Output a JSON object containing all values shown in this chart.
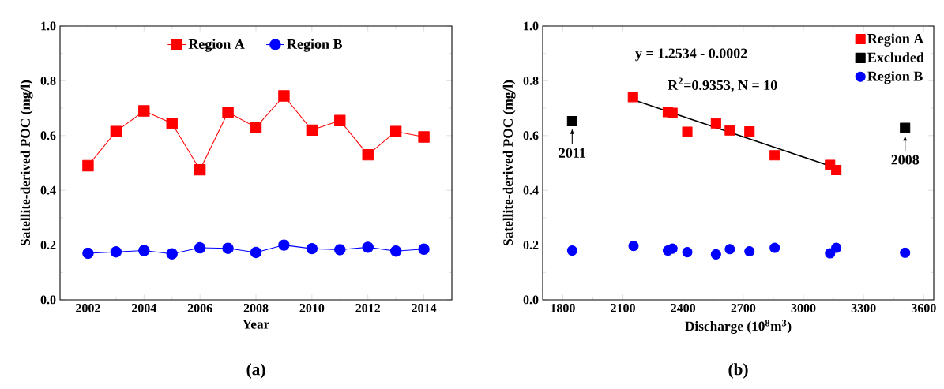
{
  "chart_data": [
    {
      "type": "line",
      "title": "(**a**)",
      "xlabel": "Year",
      "ylabel": "Satellite-derived POC (mg/l)",
      "x": [
        2002,
        2003,
        2004,
        2005,
        2006,
        2007,
        2008,
        2009,
        2010,
        2011,
        2012,
        2013,
        2014
      ],
      "series": [
        {
          "name": "Region A",
          "color": "#ff0000",
          "marker": "square",
          "values": [
            0.49,
            0.615,
            0.69,
            0.645,
            0.475,
            0.685,
            0.63,
            0.745,
            0.62,
            0.655,
            0.53,
            0.615,
            0.595
          ]
        },
        {
          "name": "Region B",
          "color": "#0000ff",
          "marker": "circle",
          "values": [
            0.17,
            0.175,
            0.18,
            0.168,
            0.19,
            0.188,
            0.173,
            0.2,
            0.187,
            0.183,
            0.192,
            0.178,
            0.185
          ]
        }
      ],
      "xlim": [
        2001,
        2015
      ],
      "xticks": [
        2002,
        2004,
        2006,
        2008,
        2010,
        2012,
        2014
      ],
      "ylim": [
        0,
        1
      ],
      "yticks": [
        {
          "value": 0,
          "label": "0.0"
        },
        {
          "value": 0.2,
          "label": "0.2"
        },
        {
          "value": 0.4,
          "label": "0.4"
        },
        {
          "value": 0.6,
          "label": "0.6"
        },
        {
          "value": 0.8,
          "label": "0.8"
        },
        {
          "value": 1,
          "label": "1.0"
        }
      ],
      "legend": "top",
      "line_style": "solid"
    },
    {
      "type": "scatter",
      "title": "(**b**)",
      "xlabel": "Discharge (10$^{8}$m$^{3}$)",
      "ylabel": "Satellite-derived POC (mg/l)",
      "series": [
        {
          "name": "Region A",
          "color": "#ff0000",
          "marker": "square",
          "x": [
            2150,
            2324,
            2347,
            2421,
            2564,
            2633,
            2731,
            2857,
            3133,
            3164
          ],
          "values": [
            0.741,
            0.686,
            0.683,
            0.614,
            0.645,
            0.619,
            0.615,
            0.528,
            0.493,
            0.474
          ]
        },
        {
          "name": "Excluded",
          "color": "#000000",
          "marker": "square",
          "x": [
            1847,
            3507
          ],
          "values": [
            0.653,
            0.628
          ]
        },
        {
          "name": "Region B",
          "color": "#0000ff",
          "marker": "circle",
          "x": [
            1847,
            2153,
            2324,
            2347,
            2421,
            2564,
            2633,
            2731,
            2857,
            3133,
            3164,
            3507
          ],
          "values": [
            0.18,
            0.197,
            0.18,
            0.187,
            0.174,
            0.166,
            0.185,
            0.177,
            0.19,
            0.17,
            0.19,
            0.172
          ]
        },
        {
          "type": "line",
          "color": "#000000",
          "marker": "none",
          "x": [
            2150,
            3140
          ],
          "values": [
            0.731,
            0.487
          ]
        }
      ],
      "annotations": [
        "y = 1.2534 - 0.0002",
        "R$^{2}$=0.9353, N = 10",
        {
          "text": "2011",
          "x": 1847,
          "y": 0.653
        },
        {
          "text": "2008",
          "x": 3507,
          "y": 0.628
        }
      ],
      "xlim": [
        1700,
        3650
      ],
      "xticks": [
        1800,
        2100,
        2400,
        2700,
        3000,
        3300,
        3600
      ],
      "ylim": [
        0,
        1
      ],
      "yticks": [
        {
          "value": 0,
          "label": "0.0"
        },
        {
          "value": 0.2,
          "label": "0.2"
        },
        {
          "value": 0.4,
          "label": "0.4"
        },
        {
          "value": 0.6,
          "label": "0.6"
        },
        {
          "value": 0.8,
          "label": "0.8"
        },
        {
          "value": 1,
          "label": "1.0"
        }
      ],
      "legend": "top right"
    }
  ]
}
